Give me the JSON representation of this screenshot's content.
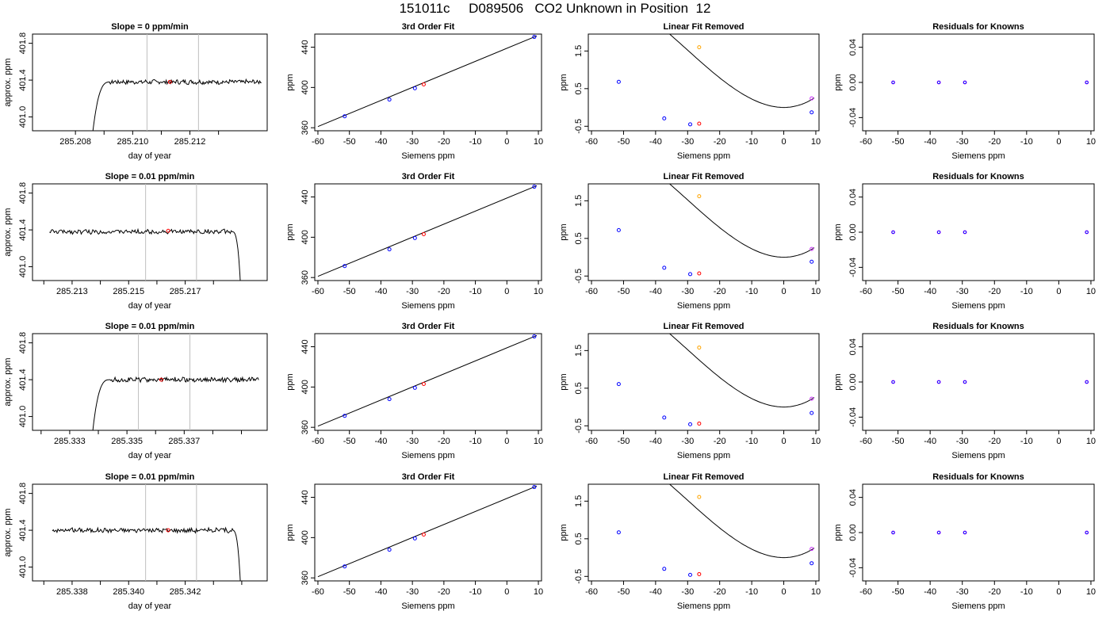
{
  "header": {
    "title": "151011c     D089506   CO2 Unknown in Position  12"
  },
  "colors": {
    "known": "#0000ff",
    "unknown": "#ff0000",
    "orange": "#ffa500",
    "magenta": "#cc33ff",
    "line": "#000000",
    "vline": "#bebebe"
  },
  "chart_data": [
    {
      "row": 1,
      "type": "line",
      "title": "Slope =  0  ppm/min",
      "xlabel": "day of year",
      "ylabel": "approx. ppm",
      "xlim": [
        285.2065,
        285.2147
      ],
      "ylim": [
        400.85,
        401.9
      ],
      "xticks": [
        "285.208",
        "285.210",
        "285.212"
      ],
      "xtick_values": [
        285.208,
        285.21,
        285.212
      ],
      "yticks": [
        "401.0",
        "401.4",
        "401.8"
      ],
      "ytick_values": [
        401.0,
        401.4,
        401.8
      ],
      "minor_xticks": [
        285.209,
        285.211,
        285.213
      ],
      "vlines": [
        285.2105,
        285.2123
      ],
      "unknown_point": [
        285.2113,
        401.38
      ],
      "trace": {
        "start": 285.2085,
        "end": 285.2145,
        "shape": "rise",
        "level": 401.38
      }
    },
    {
      "row": 1,
      "type": "scatter",
      "title": "3rd Order Fit",
      "xlabel": "Siemens ppm",
      "ylabel": "ppm",
      "xlim": [
        -61,
        11
      ],
      "ylim": [
        357,
        453
      ],
      "xticks": [
        "-60",
        "-50",
        "-40",
        "-30",
        "-20",
        "-10",
        "0",
        "10"
      ],
      "xtick_values": [
        -60,
        -50,
        -40,
        -30,
        -20,
        -10,
        0,
        10
      ],
      "yticks": [
        "360",
        "400",
        "440"
      ],
      "ytick_values": [
        360,
        400,
        440
      ],
      "knowns": [
        [
          -51.5,
          371.4
        ],
        [
          -37.3,
          388.0
        ],
        [
          -29.2,
          399.2
        ],
        [
          8.7,
          450.2
        ]
      ],
      "unknown": [
        -26.4,
        403.0
      ],
      "fit_line": [
        [
          -60,
          361.2
        ],
        [
          9.5,
          451.2
        ]
      ]
    },
    {
      "row": 1,
      "type": "scatter",
      "title": "Linear Fit Removed",
      "xlabel": "Siemens ppm",
      "ylabel": "ppm",
      "xlim": [
        -61,
        11
      ],
      "ylim": [
        -0.62,
        1.95
      ],
      "xticks": [
        "-60",
        "-50",
        "-40",
        "-30",
        "-20",
        "-10",
        "0",
        "10"
      ],
      "xtick_values": [
        -60,
        -50,
        -40,
        -30,
        -20,
        -10,
        0,
        10
      ],
      "yticks": [
        "-0.5",
        "0.5",
        "1.5"
      ],
      "ytick_values": [
        -0.5,
        0.5,
        1.5
      ],
      "knowns": [
        [
          -51.5,
          0.68
        ],
        [
          -37.3,
          -0.29
        ],
        [
          -29.2,
          -0.45
        ],
        [
          8.7,
          -0.13
        ]
      ],
      "unknown": [
        -26.4,
        -0.43
      ],
      "orange_point": [
        -26.4,
        1.6
      ],
      "magenta_point": [
        8.7,
        0.24
      ],
      "curve": {
        "a": 2.76e-05,
        "b": 0.00252,
        "c": 0.0,
        "d": 0.0
      },
      "curve_range": [
        -59.5,
        9.5
      ]
    },
    {
      "row": 1,
      "type": "scatter",
      "title": "Residuals for Knowns",
      "xlabel": "Siemens ppm",
      "ylabel": "ppm",
      "xlim": [
        -61,
        11
      ],
      "ylim": [
        -0.055,
        0.055
      ],
      "xticks": [
        "-60",
        "-50",
        "-40",
        "-30",
        "-20",
        "-10",
        "0",
        "10"
      ],
      "xtick_values": [
        -60,
        -50,
        -40,
        -30,
        -20,
        -10,
        0,
        10
      ],
      "yticks": [
        "-0.04",
        "0.00",
        "0.04"
      ],
      "ytick_values": [
        -0.04,
        0.0,
        0.04
      ],
      "knowns": [
        [
          -51.5,
          0.0
        ],
        [
          -37.3,
          0.0
        ],
        [
          -29.2,
          0.0
        ],
        [
          8.7,
          0.0
        ]
      ]
    },
    {
      "row": 2,
      "type": "line",
      "title": "Slope =  0.01  ppm/min",
      "xlabel": "day of year",
      "ylabel": "approx. ppm",
      "xlim": [
        285.2116,
        285.2199
      ],
      "ylim": [
        400.85,
        401.9
      ],
      "xticks": [
        "285.213",
        "285.215",
        "285.217"
      ],
      "xtick_values": [
        285.213,
        285.215,
        285.217
      ],
      "yticks": [
        "401.0",
        "401.4",
        "401.8"
      ],
      "ytick_values": [
        401.0,
        401.4,
        401.8
      ],
      "minor_xticks": [
        285.212,
        285.214,
        285.216,
        285.218
      ],
      "vlines": [
        285.2156,
        285.2174
      ],
      "unknown_point": [
        285.2164,
        401.39
      ],
      "trace": {
        "start": 285.2122,
        "end": 285.219,
        "shape": "fall",
        "level": 401.38
      }
    },
    {
      "row": 2,
      "type": "scatter",
      "title": "3rd Order Fit",
      "xlabel": "Siemens ppm",
      "ylabel": "ppm",
      "xlim": [
        -61,
        11
      ],
      "ylim": [
        357,
        453
      ],
      "xticks": [
        "-60",
        "-50",
        "-40",
        "-30",
        "-20",
        "-10",
        "0",
        "10"
      ],
      "xtick_values": [
        -60,
        -50,
        -40,
        -30,
        -20,
        -10,
        0,
        10
      ],
      "yticks": [
        "360",
        "400",
        "440"
      ],
      "ytick_values": [
        360,
        400,
        440
      ],
      "knowns": [
        [
          -51.5,
          371.4
        ],
        [
          -37.3,
          388.0
        ],
        [
          -29.2,
          399.2
        ],
        [
          8.7,
          450.2
        ]
      ],
      "unknown": [
        -26.4,
        403.0
      ],
      "fit_line": [
        [
          -60,
          361.2
        ],
        [
          9.5,
          451.2
        ]
      ]
    },
    {
      "row": 2,
      "type": "scatter",
      "title": "Linear Fit Removed",
      "xlabel": "Siemens ppm",
      "ylabel": "ppm",
      "xlim": [
        -61,
        11
      ],
      "ylim": [
        -0.62,
        1.95
      ],
      "xticks": [
        "-60",
        "-50",
        "-40",
        "-30",
        "-20",
        "-10",
        "0",
        "10"
      ],
      "xtick_values": [
        -60,
        -50,
        -40,
        -30,
        -20,
        -10,
        0,
        10
      ],
      "yticks": [
        "-0.5",
        "0.5",
        "1.5"
      ],
      "ytick_values": [
        -0.5,
        0.5,
        1.5
      ],
      "knowns": [
        [
          -51.5,
          0.72
        ],
        [
          -37.3,
          -0.28
        ],
        [
          -29.2,
          -0.45
        ],
        [
          8.7,
          -0.12
        ]
      ],
      "unknown": [
        -26.4,
        -0.43
      ],
      "orange_point": [
        -26.4,
        1.62
      ],
      "magenta_point": [
        8.7,
        0.22
      ],
      "curve": {
        "a": 2.76e-05,
        "b": 0.00252,
        "c": 0.0,
        "d": 0.0
      },
      "curve_range": [
        -59.5,
        9.5
      ]
    },
    {
      "row": 2,
      "type": "scatter",
      "title": "Residuals for Knowns",
      "xlabel": "Siemens ppm",
      "ylabel": "ppm",
      "xlim": [
        -61,
        11
      ],
      "ylim": [
        -0.055,
        0.055
      ],
      "xticks": [
        "-60",
        "-50",
        "-40",
        "-30",
        "-20",
        "-10",
        "0",
        "10"
      ],
      "xtick_values": [
        -60,
        -50,
        -40,
        -30,
        -20,
        -10,
        0,
        10
      ],
      "yticks": [
        "-0.04",
        "0.00",
        "0.04"
      ],
      "ytick_values": [
        -0.04,
        0.0,
        0.04
      ],
      "knowns": [
        [
          -51.5,
          0.0
        ],
        [
          -37.3,
          0.0
        ],
        [
          -29.2,
          0.0
        ],
        [
          8.7,
          0.0
        ]
      ]
    },
    {
      "row": 3,
      "type": "line",
      "title": "Slope =  0.01  ppm/min",
      "xlabel": "day of year",
      "ylabel": "approx. ppm",
      "xlim": [
        285.3317,
        285.3399
      ],
      "ylim": [
        400.85,
        401.9
      ],
      "xticks": [
        "285.333",
        "285.335",
        "285.337"
      ],
      "xtick_values": [
        285.333,
        285.335,
        285.337
      ],
      "yticks": [
        "401.0",
        "401.4",
        "401.8"
      ],
      "ytick_values": [
        401.0,
        401.4,
        401.8
      ],
      "minor_xticks": [
        285.332,
        285.334,
        285.336,
        285.338,
        285.339
      ],
      "vlines": [
        285.3354,
        285.3372
      ],
      "unknown_point": [
        285.3362,
        401.4
      ],
      "trace": {
        "start": 285.3337,
        "end": 285.3396,
        "shape": "rise",
        "level": 401.4
      }
    },
    {
      "row": 3,
      "type": "scatter",
      "title": "3rd Order Fit",
      "xlabel": "Siemens ppm",
      "ylabel": "ppm",
      "xlim": [
        -61,
        11
      ],
      "ylim": [
        357,
        453
      ],
      "xticks": [
        "-60",
        "-50",
        "-40",
        "-30",
        "-20",
        "-10",
        "0",
        "10"
      ],
      "xtick_values": [
        -60,
        -50,
        -40,
        -30,
        -20,
        -10,
        0,
        10
      ],
      "yticks": [
        "360",
        "400",
        "440"
      ],
      "ytick_values": [
        360,
        400,
        440
      ],
      "knowns": [
        [
          -51.5,
          371.4
        ],
        [
          -37.3,
          388.0
        ],
        [
          -29.2,
          399.2
        ],
        [
          8.7,
          450.2
        ]
      ],
      "unknown": [
        -26.4,
        403.0
      ],
      "fit_line": [
        [
          -60,
          361.2
        ],
        [
          9.5,
          451.2
        ]
      ]
    },
    {
      "row": 3,
      "type": "scatter",
      "title": "Linear Fit Removed",
      "xlabel": "Siemens ppm",
      "ylabel": "ppm",
      "xlim": [
        -61,
        11
      ],
      "ylim": [
        -0.62,
        1.95
      ],
      "xticks": [
        "-60",
        "-50",
        "-40",
        "-30",
        "-20",
        "-10",
        "0",
        "10"
      ],
      "xtick_values": [
        -60,
        -50,
        -40,
        -30,
        -20,
        -10,
        0,
        10
      ],
      "yticks": [
        "-0.5",
        "0.5",
        "1.5"
      ],
      "ytick_values": [
        -0.5,
        0.5,
        1.5
      ],
      "knowns": [
        [
          -51.5,
          0.61
        ],
        [
          -37.3,
          -0.28
        ],
        [
          -29.2,
          -0.46
        ],
        [
          8.7,
          -0.16
        ]
      ],
      "unknown": [
        -26.4,
        -0.44
      ],
      "orange_point": [
        -26.4,
        1.58
      ],
      "magenta_point": [
        8.7,
        0.22
      ],
      "curve": {
        "a": 2.76e-05,
        "b": 0.00252,
        "c": 0.0,
        "d": 0.0
      },
      "curve_range": [
        -59.5,
        9.5
      ]
    },
    {
      "row": 3,
      "type": "scatter",
      "title": "Residuals for Knowns",
      "xlabel": "Siemens ppm",
      "ylabel": "ppm",
      "xlim": [
        -61,
        11
      ],
      "ylim": [
        -0.055,
        0.055
      ],
      "xticks": [
        "-60",
        "-50",
        "-40",
        "-30",
        "-20",
        "-10",
        "0",
        "10"
      ],
      "xtick_values": [
        -60,
        -50,
        -40,
        -30,
        -20,
        -10,
        0,
        10
      ],
      "yticks": [
        "-0.04",
        "0.00",
        "0.04"
      ],
      "ytick_values": [
        -0.04,
        0.0,
        0.04
      ],
      "knowns": [
        [
          -51.5,
          0.0
        ],
        [
          -37.3,
          0.0
        ],
        [
          -29.2,
          0.0
        ],
        [
          8.7,
          0.0
        ]
      ]
    },
    {
      "row": 4,
      "type": "line",
      "title": "Slope =  0.01  ppm/min",
      "xlabel": "day of year",
      "ylabel": "approx. ppm",
      "xlim": [
        285.3366,
        285.3449
      ],
      "ylim": [
        400.85,
        401.9
      ],
      "xticks": [
        "285.338",
        "285.340",
        "285.342"
      ],
      "xtick_values": [
        285.338,
        285.34,
        285.342
      ],
      "yticks": [
        "401.0",
        "401.4",
        "401.8"
      ],
      "ytick_values": [
        401.0,
        401.4,
        401.8
      ],
      "minor_xticks": [
        285.337,
        285.339,
        285.341,
        285.343,
        285.344
      ],
      "vlines": [
        285.3406,
        285.3424
      ],
      "unknown_point": [
        285.3414,
        401.4
      ],
      "trace": {
        "start": 285.3373,
        "end": 285.344,
        "shape": "fall",
        "level": 401.4
      }
    },
    {
      "row": 4,
      "type": "scatter",
      "title": "3rd Order Fit",
      "xlabel": "Siemens ppm",
      "ylabel": "ppm",
      "xlim": [
        -61,
        11
      ],
      "ylim": [
        357,
        453
      ],
      "xticks": [
        "-60",
        "-50",
        "-40",
        "-30",
        "-20",
        "-10",
        "0",
        "10"
      ],
      "xtick_values": [
        -60,
        -50,
        -40,
        -30,
        -20,
        -10,
        0,
        10
      ],
      "yticks": [
        "360",
        "400",
        "440"
      ],
      "ytick_values": [
        360,
        400,
        440
      ],
      "knowns": [
        [
          -51.5,
          371.4
        ],
        [
          -37.3,
          388.0
        ],
        [
          -29.2,
          399.2
        ],
        [
          8.7,
          450.2
        ]
      ],
      "unknown": [
        -26.4,
        403.0
      ],
      "fit_line": [
        [
          -60,
          361.2
        ],
        [
          9.5,
          451.2
        ]
      ]
    },
    {
      "row": 4,
      "type": "scatter",
      "title": "Linear Fit Removed",
      "xlabel": "Siemens ppm",
      "ylabel": "ppm",
      "xlim": [
        -61,
        11
      ],
      "ylim": [
        -0.62,
        1.95
      ],
      "xticks": [
        "-60",
        "-50",
        "-40",
        "-30",
        "-20",
        "-10",
        "0",
        "10"
      ],
      "xtick_values": [
        -60,
        -50,
        -40,
        -30,
        -20,
        -10,
        0,
        10
      ],
      "yticks": [
        "-0.5",
        "0.5",
        "1.5"
      ],
      "ytick_values": [
        -0.5,
        0.5,
        1.5
      ],
      "knowns": [
        [
          -51.5,
          0.67
        ],
        [
          -37.3,
          -0.3
        ],
        [
          -29.2,
          -0.46
        ],
        [
          8.7,
          -0.15
        ]
      ],
      "unknown": [
        -26.4,
        -0.44
      ],
      "orange_point": [
        -26.4,
        1.61
      ],
      "magenta_point": [
        8.7,
        0.23
      ],
      "curve": {
        "a": 2.76e-05,
        "b": 0.00252,
        "c": 0.0,
        "d": 0.0
      },
      "curve_range": [
        -59.5,
        9.5
      ]
    },
    {
      "row": 4,
      "type": "scatter",
      "title": "Residuals for Knowns",
      "xlabel": "Siemens ppm",
      "ylabel": "ppm",
      "xlim": [
        -61,
        11
      ],
      "ylim": [
        -0.055,
        0.055
      ],
      "xticks": [
        "-60",
        "-50",
        "-40",
        "-30",
        "-20",
        "-10",
        "0",
        "10"
      ],
      "xtick_values": [
        -60,
        -50,
        -40,
        -30,
        -20,
        -10,
        0,
        10
      ],
      "yticks": [
        "-0.04",
        "0.00",
        "0.04"
      ],
      "ytick_values": [
        -0.04,
        0.0,
        0.04
      ],
      "knowns": [
        [
          -51.5,
          0.0
        ],
        [
          -37.3,
          0.0
        ],
        [
          -29.2,
          0.0
        ],
        [
          8.7,
          0.0
        ]
      ]
    }
  ]
}
